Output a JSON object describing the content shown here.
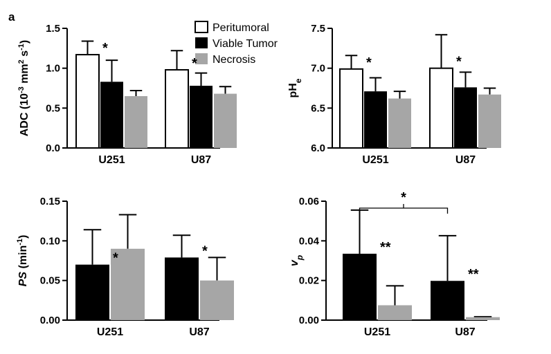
{
  "figure": {
    "panel_label": "a",
    "legend": [
      {
        "label": "Peritumoral",
        "color": "#ffffff"
      },
      {
        "label": "Viable Tumor",
        "color": "#000000"
      },
      {
        "label": "Necrosis",
        "color": "#a6a6a6"
      }
    ]
  },
  "chart_data": [
    {
      "id": "adc",
      "type": "bar",
      "categories": [
        "U251",
        "U87"
      ],
      "ylabel_parts": [
        "ADC (10",
        "-3",
        " mm",
        "2",
        " s",
        "-1",
        ")"
      ],
      "ylim": [
        0,
        1.5
      ],
      "yticks": [
        "0.0",
        "0.5",
        "1.0",
        "1.5"
      ],
      "series": [
        {
          "name": "Peritumoral",
          "color": "#ffffff",
          "values": [
            1.17,
            0.98
          ],
          "errors": [
            0.17,
            0.24
          ]
        },
        {
          "name": "Viable Tumor",
          "color": "#000000",
          "values": [
            0.83,
            0.78
          ],
          "errors": [
            0.27,
            0.16
          ]
        },
        {
          "name": "Necrosis",
          "color": "#a6a6a6",
          "values": [
            0.65,
            0.68
          ],
          "errors": [
            0.07,
            0.09
          ]
        }
      ],
      "annotations": [
        {
          "text": "*",
          "category": 0,
          "series": 0
        },
        {
          "text": "*",
          "category": 1,
          "series": 0
        }
      ]
    },
    {
      "id": "phe",
      "type": "bar",
      "categories": [
        "U251",
        "U87"
      ],
      "ylabel_parts": [
        "pH",
        "e"
      ],
      "ylim": [
        6.0,
        7.5
      ],
      "yticks": [
        "6.0",
        "6.5",
        "7.0",
        "7.5"
      ],
      "series": [
        {
          "name": "Peritumoral",
          "color": "#ffffff",
          "values": [
            6.99,
            7.0
          ],
          "errors": [
            0.17,
            0.42
          ]
        },
        {
          "name": "Viable Tumor",
          "color": "#000000",
          "values": [
            6.71,
            6.76
          ],
          "errors": [
            0.17,
            0.19
          ]
        },
        {
          "name": "Necrosis",
          "color": "#a6a6a6",
          "values": [
            6.62,
            6.67
          ],
          "errors": [
            0.09,
            0.08
          ]
        }
      ],
      "annotations": [
        {
          "text": "*",
          "category": 0,
          "series": 0
        },
        {
          "text": "*",
          "category": 1,
          "series": 0
        }
      ]
    },
    {
      "id": "ps",
      "type": "bar",
      "categories": [
        "U251",
        "U87"
      ],
      "ylabel_parts": [
        "PS",
        " (min",
        "-1",
        ")"
      ],
      "ylim": [
        0,
        0.15
      ],
      "yticks": [
        "0.00",
        "0.05",
        "0.10",
        "0.15"
      ],
      "series": [
        {
          "name": "Viable Tumor",
          "color": "#000000",
          "values": [
            0.07,
            0.079
          ],
          "errors": [
            0.044,
            0.028
          ]
        },
        {
          "name": "Necrosis",
          "color": "#a6a6a6",
          "values": [
            0.09,
            0.05
          ],
          "errors": [
            0.043,
            0.029
          ]
        }
      ],
      "annotations": [
        {
          "text": "*",
          "category": 0,
          "series": 0
        },
        {
          "text": "*",
          "category": 1,
          "series": 0
        }
      ]
    },
    {
      "id": "vp",
      "type": "bar",
      "categories": [
        "U251",
        "U87"
      ],
      "ylabel_parts": [
        "v",
        "p"
      ],
      "ylim": [
        0,
        0.06
      ],
      "yticks": [
        "0.00",
        "0.02",
        "0.04",
        "0.06"
      ],
      "series": [
        {
          "name": "Viable Tumor",
          "color": "#000000",
          "values": [
            0.0335,
            0.0198
          ],
          "errors": [
            0.022,
            0.0228
          ]
        },
        {
          "name": "Necrosis",
          "color": "#a6a6a6",
          "values": [
            0.0075,
            0.0015
          ],
          "errors": [
            0.0098,
            0.0002
          ]
        }
      ],
      "annotations": [
        {
          "text": "**",
          "category": 0,
          "series": 0
        },
        {
          "text": "**",
          "category": 1,
          "series": 0
        }
      ],
      "bracket": {
        "text": "*",
        "y": 0.0565
      }
    }
  ]
}
